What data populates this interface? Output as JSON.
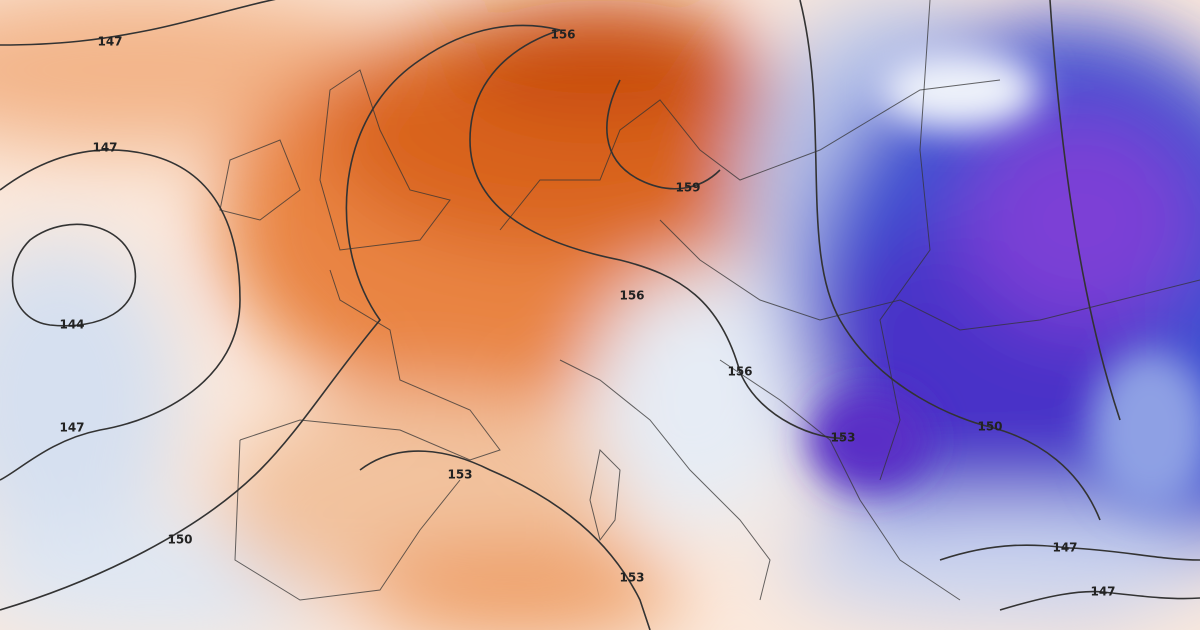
{
  "map": {
    "contour_labels": [
      "147",
      "147",
      "144",
      "147",
      "150",
      "153",
      "156",
      "159",
      "156",
      "156",
      "153",
      "150",
      "153",
      "147",
      "147"
    ]
  }
}
